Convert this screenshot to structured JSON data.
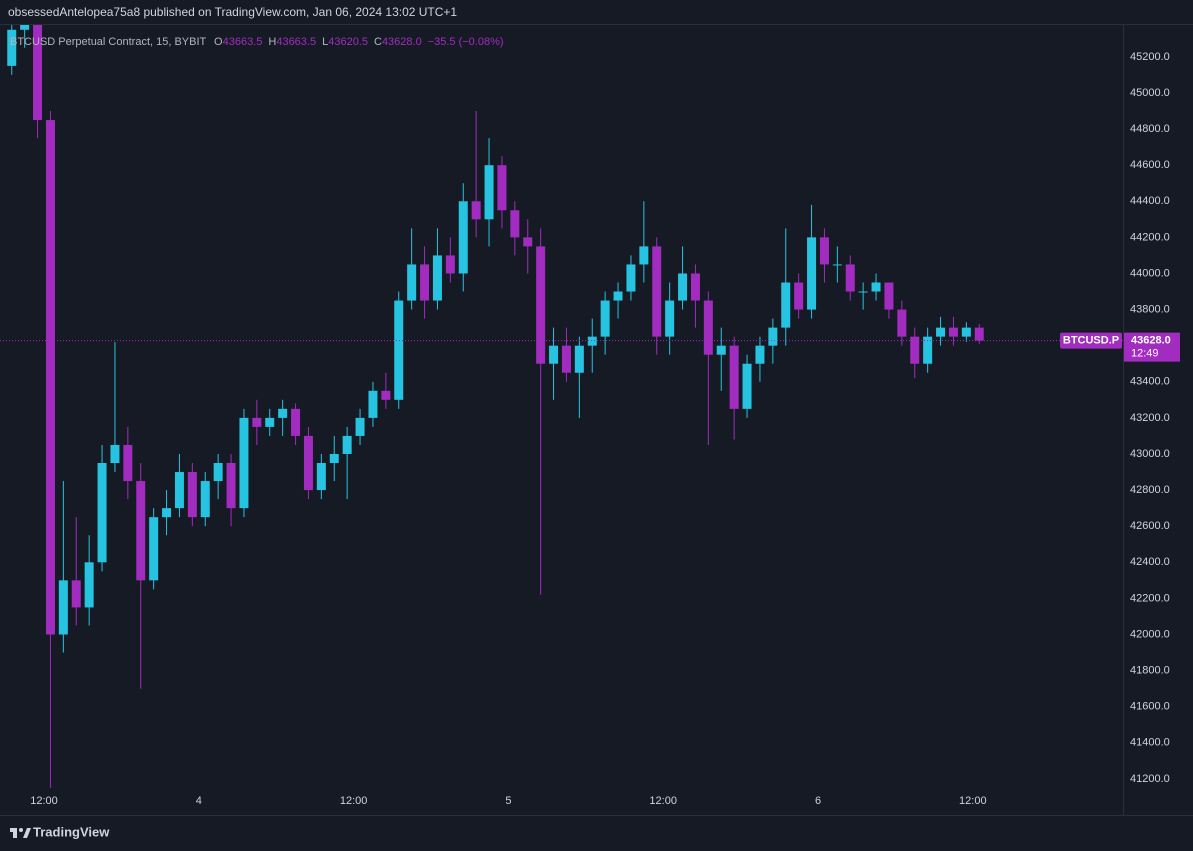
{
  "header": {
    "publisher_line": "obsessedAntelopea75a8 published on TradingView.com, Jan 06, 2024 13:02 UTC+1"
  },
  "chart_data": {
    "type": "candlestick",
    "title": "BTCUSD Perpetual Contract, 15, BYBIT",
    "ohlc_legend": [
      {
        "key": "O",
        "text": "43663.5"
      },
      {
        "key": "H",
        "text": "43663.5"
      },
      {
        "key": "L",
        "text": "43620.5"
      },
      {
        "key": "C",
        "text": "43628.0"
      }
    ],
    "change": "−35.5 (−0.08%)",
    "categories": [
      null,
      null,
      null,
      "12:00",
      null,
      null,
      null,
      null,
      null,
      null,
      null,
      null,
      null,
      null,
      null,
      "4",
      null,
      null,
      null,
      null,
      null,
      null,
      null,
      null,
      null,
      null,
      null,
      "12:00",
      null,
      null,
      null,
      null,
      null,
      null,
      null,
      null,
      null,
      null,
      null,
      "5",
      null,
      null,
      null,
      null,
      null,
      null,
      null,
      null,
      null,
      null,
      null,
      "12:00",
      null,
      null,
      null,
      null,
      null,
      null,
      null,
      null,
      null,
      null,
      null,
      "6",
      null,
      null,
      null,
      null,
      null,
      null,
      null,
      null,
      null,
      null,
      null,
      "12:00"
    ],
    "series": [
      {
        "name": "BTCUSD.P",
        "up_color": "#26c4e0",
        "down_color": "#a22cbf",
        "open": [
          45150,
          45350,
          45400,
          44850,
          42000,
          42300,
          42150,
          42400,
          42950,
          43050,
          42850,
          42300,
          42650,
          42700,
          42900,
          42650,
          42850,
          42950,
          42700,
          43200,
          43150,
          43200,
          43250,
          43100,
          42800,
          42950,
          43000,
          43100,
          43200,
          43350,
          43300,
          43850,
          44050,
          43850,
          44100,
          44000,
          44400,
          44300,
          44600,
          44350,
          44200,
          44150,
          43500,
          43600,
          43450,
          43600,
          43650,
          43850,
          43900,
          44050,
          44150,
          43650,
          43850,
          44000,
          43850,
          43550,
          43600,
          43250,
          43500,
          43600,
          43700,
          43950,
          43800,
          44200,
          44050,
          44050,
          43900,
          43900,
          43950,
          43800,
          43650,
          43500,
          43650,
          43700,
          43650,
          43700
        ],
        "high": [
          45450,
          45480,
          45450,
          44900,
          42850,
          42650,
          42550,
          43050,
          43620,
          43150,
          42950,
          42700,
          42800,
          43000,
          42950,
          42900,
          43000,
          43000,
          43250,
          43300,
          43250,
          43300,
          43280,
          43150,
          43000,
          43100,
          43150,
          43250,
          43400,
          43450,
          43900,
          44250,
          44150,
          44250,
          44200,
          44500,
          44900,
          44750,
          44650,
          44400,
          44300,
          44250,
          43700,
          43700,
          43650,
          43750,
          43900,
          43950,
          44100,
          44400,
          44200,
          43950,
          44150,
          44050,
          43900,
          43700,
          43650,
          43550,
          43650,
          43750,
          44250,
          44000,
          44380,
          44250,
          44150,
          44100,
          43950,
          44000,
          43950,
          43850,
          43700,
          43700,
          43760,
          43760,
          43730,
          43720
        ],
        "low": [
          45100,
          45250,
          44750,
          41150,
          41900,
          42050,
          42050,
          42350,
          42900,
          42750,
          41700,
          42250,
          42550,
          42650,
          42600,
          42600,
          42750,
          42600,
          42650,
          43050,
          43100,
          43100,
          43050,
          42750,
          42750,
          42850,
          42750,
          43050,
          43150,
          43250,
          43250,
          43800,
          43750,
          43800,
          43950,
          43900,
          44200,
          44150,
          44250,
          44100,
          44000,
          42220,
          43300,
          43400,
          43200,
          43450,
          43550,
          43750,
          43850,
          43950,
          43550,
          43550,
          43800,
          43700,
          43050,
          43350,
          43080,
          43200,
          43400,
          43500,
          43600,
          43750,
          43750,
          43950,
          43950,
          43850,
          43800,
          43850,
          43750,
          43600,
          43420,
          43450,
          43600,
          43600,
          43620,
          43610
        ],
        "close": [
          45350,
          45400,
          44850,
          42000,
          42300,
          42150,
          42400,
          42950,
          43050,
          42850,
          42300,
          42650,
          42700,
          42900,
          42650,
          42850,
          42950,
          42700,
          43200,
          43150,
          43200,
          43250,
          43100,
          42800,
          42950,
          43000,
          43100,
          43200,
          43350,
          43300,
          43850,
          44050,
          43850,
          44100,
          44000,
          44400,
          44300,
          44600,
          44350,
          44200,
          44150,
          43500,
          43600,
          43450,
          43600,
          43650,
          43850,
          43900,
          44050,
          44150,
          43650,
          43850,
          44000,
          43850,
          43550,
          43600,
          43250,
          43500,
          43600,
          43700,
          43950,
          43800,
          44200,
          44050,
          44050,
          43900,
          43900,
          43950,
          43800,
          43650,
          43500,
          43650,
          43700,
          43650,
          43700,
          43628
        ]
      }
    ],
    "ylim": [
      41000,
      45515
    ],
    "yticks": [
      {
        "value": 41200,
        "label": "41200.0"
      },
      {
        "value": 41400,
        "label": "41400.0"
      },
      {
        "value": 41600,
        "label": "41600.0"
      },
      {
        "value": 41800,
        "label": "41800.0"
      },
      {
        "value": 42000,
        "label": "42000.0"
      },
      {
        "value": 42200,
        "label": "42200.0"
      },
      {
        "value": 42400,
        "label": "42400.0"
      },
      {
        "value": 42600,
        "label": "42600.0"
      },
      {
        "value": 42800,
        "label": "42800.0"
      },
      {
        "value": 43000,
        "label": "43000.0"
      },
      {
        "value": 43200,
        "label": "43200.0"
      },
      {
        "value": 43400,
        "label": "43400.0"
      },
      {
        "value": 43600,
        "label": "43600.0"
      },
      {
        "value": 43800,
        "label": "43800.0"
      },
      {
        "value": 44000,
        "label": "44000.0"
      },
      {
        "value": 44200,
        "label": "44200.0"
      },
      {
        "value": 44400,
        "label": "44400.0"
      },
      {
        "value": 44600,
        "label": "44600.0"
      },
      {
        "value": 44800,
        "label": "44800.0"
      },
      {
        "value": 45000,
        "label": "45000.0"
      },
      {
        "value": 45200,
        "label": "45200.0"
      }
    ],
    "grid": false,
    "last_price": {
      "value": 43628,
      "label": "43628.0"
    },
    "countdown": "12:49"
  },
  "footer": {
    "brand": "TradingView"
  }
}
